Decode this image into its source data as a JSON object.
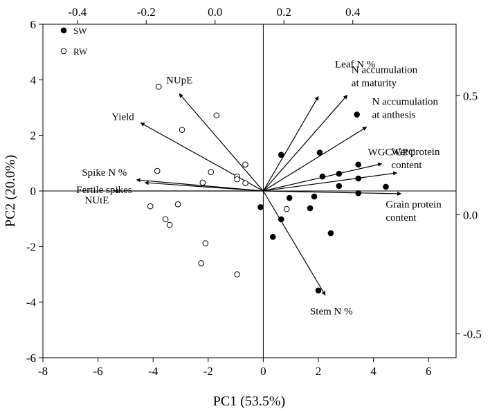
{
  "chart_data": {
    "type": "scatter",
    "subtype": "pca-biplot",
    "xlabel": "PC1 (53.5%)",
    "ylabel": "PC2 (20.0%)",
    "xlim": [
      -8,
      7
    ],
    "ylim": [
      -6,
      6
    ],
    "xticks": [
      -8,
      -6,
      -4,
      -2,
      0,
      2,
      4,
      6
    ],
    "yticks": [
      -6,
      -4,
      -2,
      0,
      2,
      4,
      6
    ],
    "top_axis": {
      "lim": [
        -0.5,
        0.7
      ],
      "ticks": [
        -0.4,
        -0.2,
        0.0,
        0.2,
        0.4
      ],
      "tick_labels": [
        "-0.4",
        "-0.2",
        "0.0",
        "0.2",
        "0.4"
      ]
    },
    "right_axis": {
      "lim": [
        -0.6,
        0.8
      ],
      "ticks": [
        0.5,
        0.0,
        -0.5
      ],
      "tick_labels": [
        "0.5",
        "0.0",
        "-0.5"
      ]
    },
    "grid": false,
    "legend": {
      "placement": "top-left",
      "entries": [
        {
          "name": "SW",
          "marker": "filled-circle"
        },
        {
          "name": "RW",
          "marker": "open-circle"
        }
      ]
    },
    "series": [
      {
        "name": "SW",
        "marker": "filled-circle",
        "points": [
          {
            "x": 3.4,
            "y": 2.75
          },
          {
            "x": 0.65,
            "y": 1.3
          },
          {
            "x": 2.05,
            "y": 1.38
          },
          {
            "x": 3.45,
            "y": 0.95
          },
          {
            "x": 2.75,
            "y": 0.62
          },
          {
            "x": 2.15,
            "y": 0.52
          },
          {
            "x": 3.45,
            "y": 0.45
          },
          {
            "x": 2.75,
            "y": 0.18
          },
          {
            "x": 4.45,
            "y": 0.15
          },
          {
            "x": 3.45,
            "y": -0.08
          },
          {
            "x": 0.95,
            "y": -0.25
          },
          {
            "x": 1.85,
            "y": -0.2
          },
          {
            "x": -0.1,
            "y": -0.58
          },
          {
            "x": 1.7,
            "y": -0.62
          },
          {
            "x": 0.65,
            "y": -1.02
          },
          {
            "x": 0.35,
            "y": -1.65
          },
          {
            "x": 2.45,
            "y": -1.52
          },
          {
            "x": 2.0,
            "y": -3.58
          }
        ]
      },
      {
        "name": "RW",
        "marker": "open-circle",
        "points": [
          {
            "x": -3.8,
            "y": 3.75
          },
          {
            "x": -1.7,
            "y": 2.72
          },
          {
            "x": -2.95,
            "y": 2.2
          },
          {
            "x": -0.65,
            "y": 0.95
          },
          {
            "x": -3.85,
            "y": 0.72
          },
          {
            "x": -1.9,
            "y": 0.68
          },
          {
            "x": -0.95,
            "y": 0.52
          },
          {
            "x": -0.95,
            "y": 0.42
          },
          {
            "x": -2.2,
            "y": 0.3
          },
          {
            "x": -0.65,
            "y": 0.28
          },
          {
            "x": -4.1,
            "y": -0.55
          },
          {
            "x": -3.1,
            "y": -0.48
          },
          {
            "x": 0.85,
            "y": -0.65
          },
          {
            "x": -3.55,
            "y": -1.02
          },
          {
            "x": -3.4,
            "y": -1.22
          },
          {
            "x": -2.1,
            "y": -1.88
          },
          {
            "x": -2.25,
            "y": -2.6
          },
          {
            "x": -0.95,
            "y": -3.0
          }
        ]
      }
    ],
    "loadings": [
      {
        "name": "Leaf N %",
        "label_lines": [
          "Leaf N %"
        ],
        "x": 2.0,
        "y": 3.4
      },
      {
        "name": "N accumulation at maturity",
        "label_lines": [
          "N accumulation",
          "at maturity"
        ],
        "x": 3.05,
        "y": 3.45
      },
      {
        "name": "N accumulation at anthesis",
        "label_lines": [
          "N accumulation",
          "at anthesis"
        ],
        "x": 3.75,
        "y": 2.3
      },
      {
        "name": "WGC/GPC",
        "label_lines": [
          "WGC/GPC"
        ],
        "x": 4.3,
        "y": 0.98
      },
      {
        "name": "Wet protein content",
        "label_lines": [
          "Wet protein",
          "content"
        ],
        "x": 4.85,
        "y": 0.65
      },
      {
        "name": "Grain protein content",
        "label_lines": [
          "Grain protein",
          "content"
        ],
        "x": 5.0,
        "y": -0.1
      },
      {
        "name": "Stem N %",
        "label_lines": [
          "Stem N %"
        ],
        "x": 2.25,
        "y": -3.75
      },
      {
        "name": "NUpE",
        "label_lines": [
          "NUpE"
        ],
        "x": -3.05,
        "y": 3.5
      },
      {
        "name": "Yield",
        "label_lines": [
          "Yield"
        ],
        "x": -4.45,
        "y": 2.45
      },
      {
        "name": "Spike N %",
        "label_lines": [
          "Spike N %"
        ],
        "x": -4.6,
        "y": 0.4
      },
      {
        "name": "Fertile spikes",
        "label_lines": [
          "Fertile spikes"
        ],
        "x": -4.3,
        "y": 0.3
      },
      {
        "name": "NUtE",
        "label_lines": [
          "NUtE"
        ],
        "x": -5.4,
        "y": 0.0
      }
    ]
  }
}
